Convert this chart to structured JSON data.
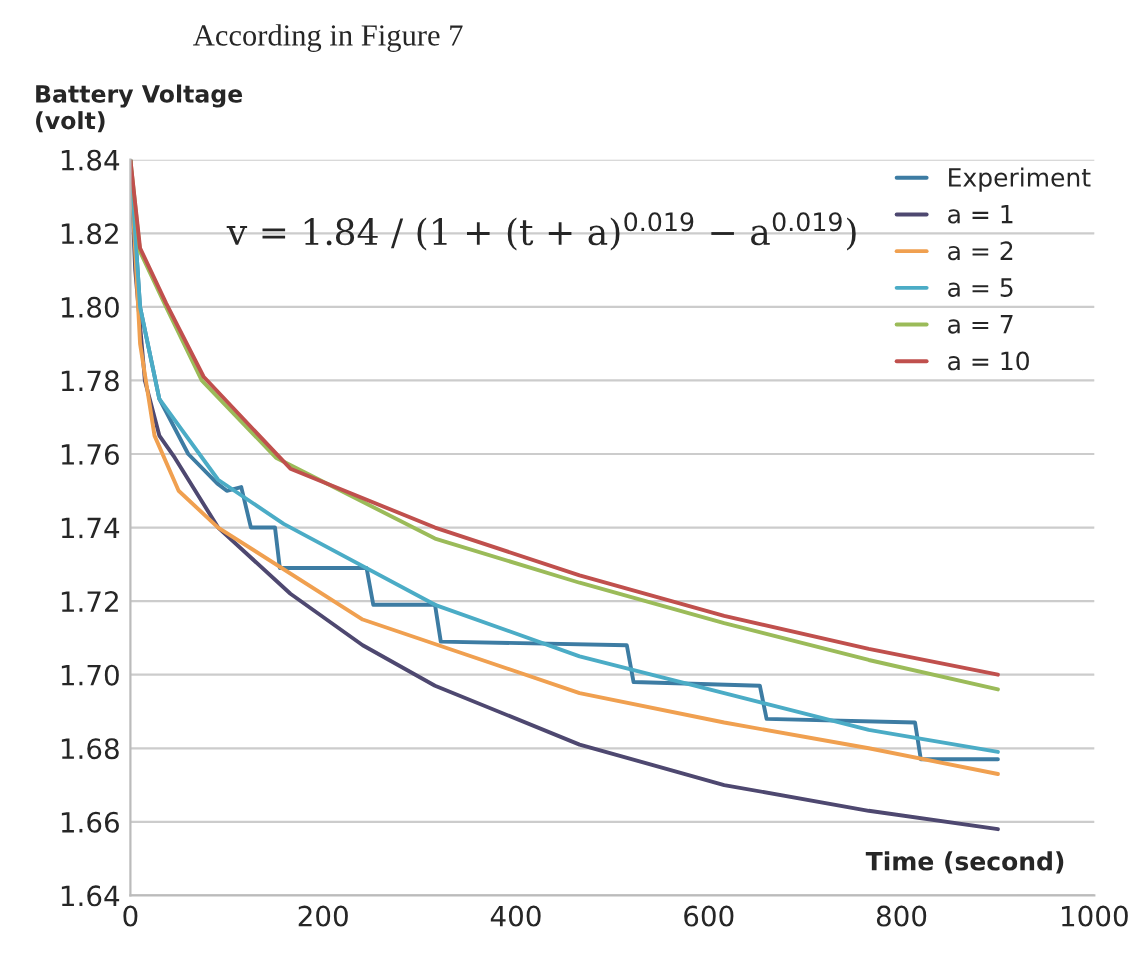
{
  "chart_data": {
    "type": "line",
    "title": "According in Figure 7",
    "ylabel": "Battery Voltage\n(volt)",
    "xlabel": "Time (second)",
    "annotations": [
      "v = 1.84 / (1 + (t + a)$^{0.019}$ − a$^{0.019}$)"
    ],
    "series": [
      {
        "name": "Experiment",
        "color": "#3d7ca3",
        "x": [
          0,
          10,
          30,
          60,
          90,
          100,
          115,
          125,
          150,
          155,
          245,
          252,
          316,
          322,
          515,
          522,
          653,
          660,
          814,
          820,
          900
        ],
        "values": [
          1.84,
          1.8,
          1.775,
          1.76,
          1.752,
          1.75,
          1.751,
          1.74,
          1.74,
          1.729,
          1.729,
          1.719,
          1.719,
          1.709,
          1.708,
          1.698,
          1.697,
          1.688,
          1.687,
          1.677,
          1.677
        ]
      },
      {
        "name": "a = 1",
        "color": "#4e4870",
        "x": [
          0,
          5,
          15,
          30,
          46,
          91,
          166,
          241,
          316,
          466,
          616,
          766,
          900
        ],
        "values": [
          1.84,
          1.81,
          1.78,
          1.765,
          1.759,
          1.74,
          1.722,
          1.708,
          1.697,
          1.681,
          1.67,
          1.663,
          1.658
        ]
      },
      {
        "name": "a = 2",
        "color": "#f0a050",
        "x": [
          0,
          10,
          25,
          50,
          91,
          241,
          466,
          616,
          766,
          900
        ],
        "values": [
          1.84,
          1.79,
          1.765,
          1.75,
          1.74,
          1.715,
          1.695,
          1.687,
          1.68,
          1.673
        ]
      },
      {
        "name": "a = 5",
        "color": "#4bacc6",
        "x": [
          0,
          10,
          30,
          91,
          159,
          316,
          466,
          616,
          766,
          900
        ],
        "values": [
          1.84,
          1.8,
          1.775,
          1.753,
          1.741,
          1.719,
          1.705,
          1.695,
          1.685,
          1.679
        ]
      },
      {
        "name": "a = 7",
        "color": "#9bbb59",
        "x": [
          0,
          10,
          37,
          74,
          151,
          316,
          466,
          616,
          766,
          900
        ],
        "values": [
          1.84,
          1.815,
          1.8,
          1.78,
          1.759,
          1.737,
          1.725,
          1.714,
          1.704,
          1.696
        ]
      },
      {
        "name": "a = 10",
        "color": "#c0504d",
        "x": [
          0,
          10,
          37,
          76,
          166,
          316,
          466,
          616,
          766,
          900
        ],
        "values": [
          1.84,
          1.816,
          1.801,
          1.781,
          1.756,
          1.74,
          1.727,
          1.716,
          1.707,
          1.7
        ]
      }
    ],
    "xlim": [
      0,
      1000
    ],
    "xticks": [
      0,
      200,
      400,
      600,
      800,
      1000
    ],
    "ylim": [
      1.64,
      1.84
    ],
    "yticks": [
      1.64,
      1.66,
      1.68,
      {
        "value": 1.7,
        "label": "1.70"
      },
      1.72,
      1.74,
      1.76,
      1.78,
      {
        "value": 1.8,
        "label": "1.80"
      },
      1.82,
      1.84
    ],
    "grid": "y",
    "legend": "top right",
    "marker": "none",
    "line_style": "solid"
  }
}
